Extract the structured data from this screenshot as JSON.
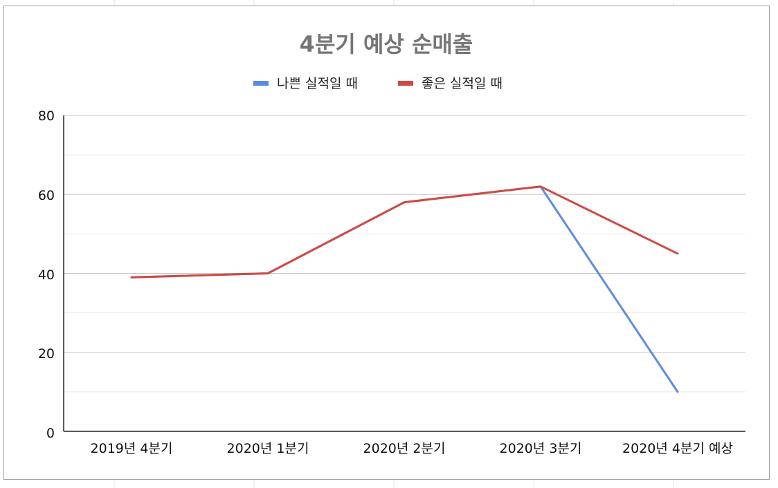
{
  "chart_data": {
    "type": "line",
    "title": "4분기 예상 순매출",
    "categories": [
      "2019년 4분기",
      "2020년 1분기",
      "2020년 2분기",
      "2020년 3분기",
      "2020년 4분기 예상"
    ],
    "series": [
      {
        "name": "나쁜 실적일 때",
        "color": "#5a8be8",
        "values": [
          39,
          40,
          58,
          62,
          10
        ]
      },
      {
        "name": "좋은 실적일 때",
        "color": "#d2493f",
        "values": [
          39,
          40,
          58,
          62,
          45
        ]
      }
    ],
    "ylim": [
      0,
      80
    ],
    "yticks": [
      "80",
      "60",
      "40",
      "20",
      "0"
    ],
    "grid": true,
    "legend_position": "top"
  }
}
